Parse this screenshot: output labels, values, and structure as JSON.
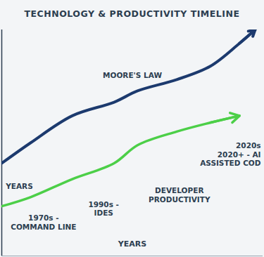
{
  "chart_data": {
    "type": "line",
    "title": "TECHNOLOGY & PRODUCTIVITY TIMELINE",
    "x_label": "YEARS",
    "xlim": [
      0,
      100
    ],
    "ylim": [
      0,
      100
    ],
    "tick_labels": false,
    "grid": false,
    "x": [
      0,
      11,
      27,
      43,
      52,
      67,
      80,
      91,
      97
    ],
    "series": [
      {
        "name": "MOORE'S LAW",
        "color": "#1c3a6e",
        "values": [
          41,
          50,
          62,
          68,
          73,
          78,
          84,
          94,
          100
        ]
      },
      {
        "name": "DEVELOPER PRODUCTIVITY",
        "color": "#4ccf48",
        "values": [
          22,
          26,
          34,
          41,
          49,
          55,
          59,
          62,
          null
        ]
      }
    ],
    "annotations": [
      "1970s -\nCOMMAND LINE",
      "1990s -\nIDES",
      "2020s\n2020+ - AI\nASSISTED COD",
      "YEARS"
    ]
  }
}
